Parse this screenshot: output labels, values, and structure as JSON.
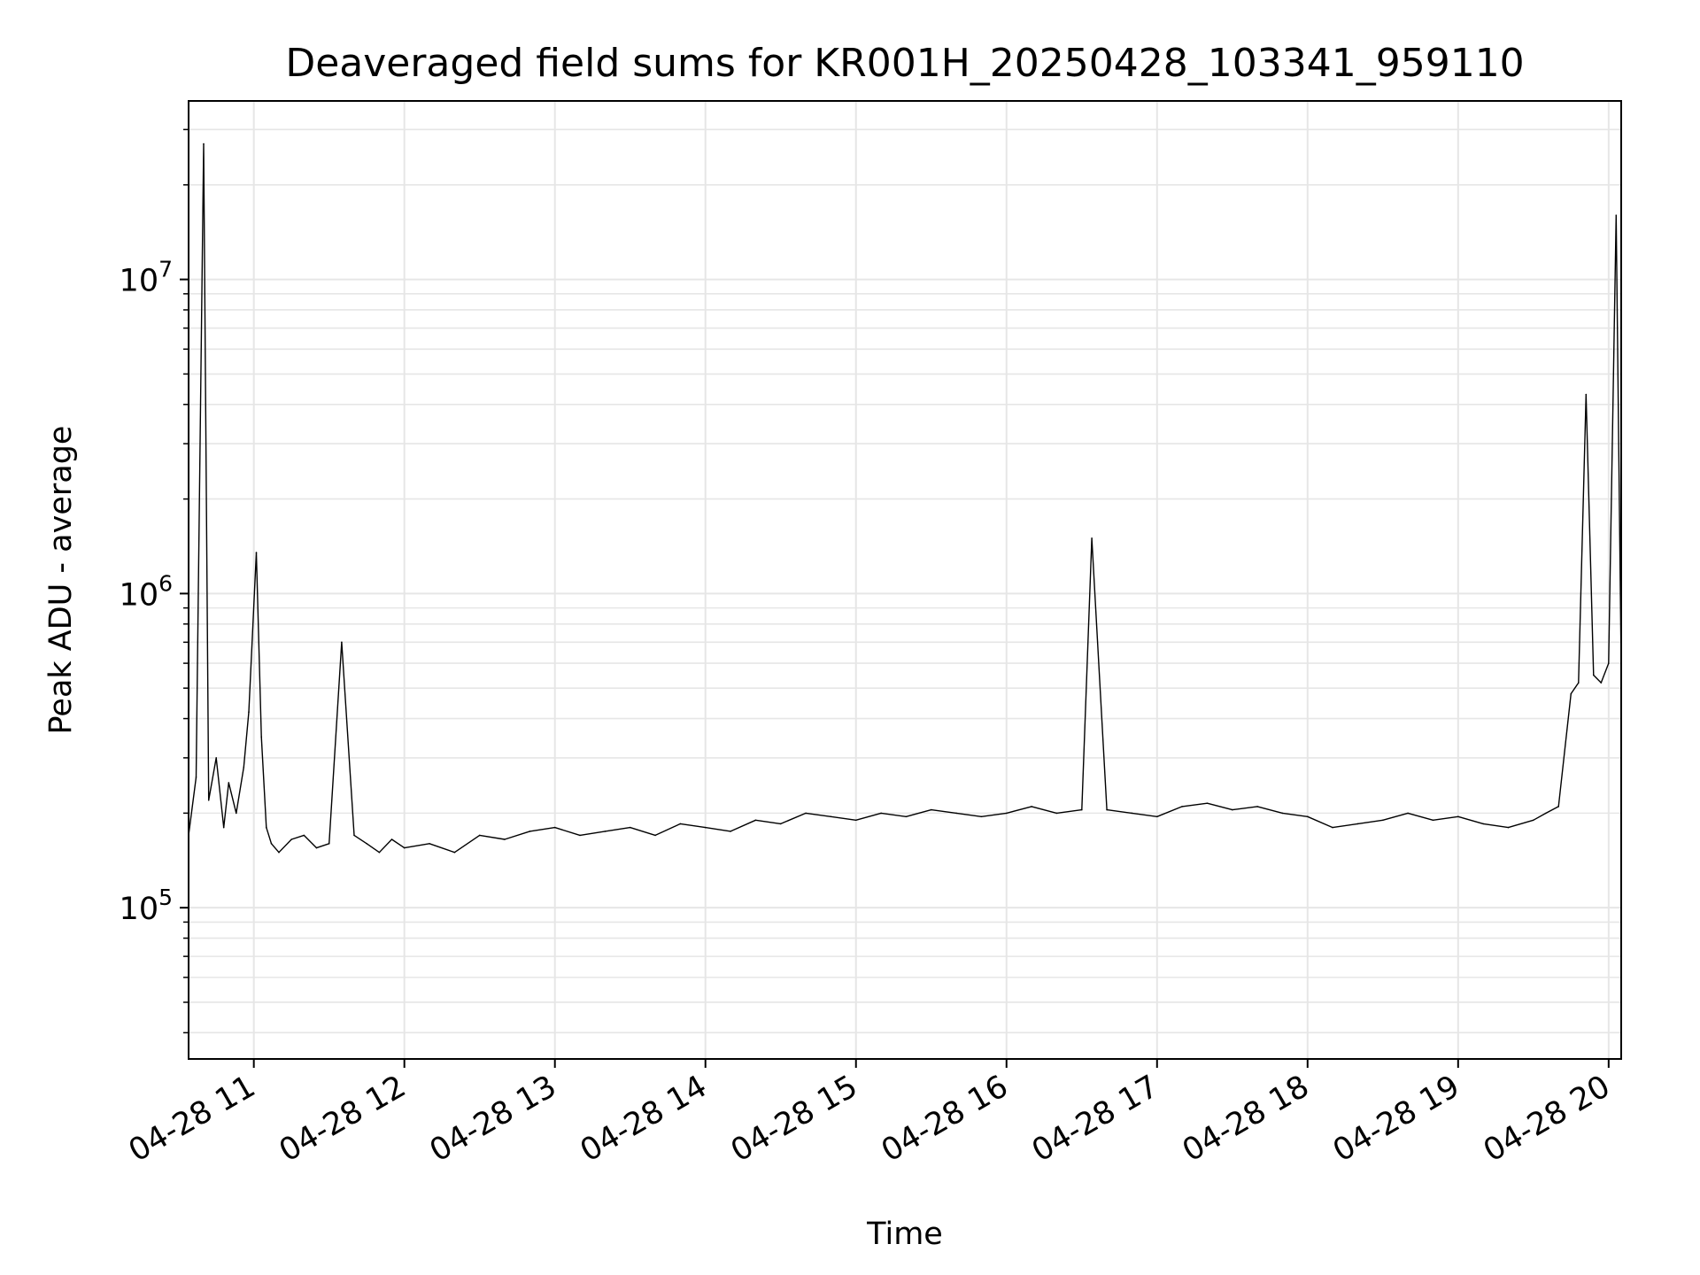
{
  "chart_data": {
    "type": "line",
    "title": "Deaveraged field sums for KR001H_20250428_103341_959110",
    "xlabel": "Time",
    "ylabel": "Peak ADU - average",
    "y_scale": "log",
    "ylim": [
      33000,
      37000000
    ],
    "xlim": [
      "2025-04-28 10:34",
      "2025-04-28 20:05"
    ],
    "grid": true,
    "line_color": "#000000",
    "x_ticks": [
      "04-28 11",
      "04-28 12",
      "04-28 13",
      "04-28 14",
      "04-28 15",
      "04-28 16",
      "04-28 17",
      "04-28 18",
      "04-28 19",
      "04-28 20"
    ],
    "y_ticks": [
      {
        "base": "10",
        "exp": "5",
        "value": 100000
      },
      {
        "base": "10",
        "exp": "6",
        "value": 1000000
      },
      {
        "base": "10",
        "exp": "7",
        "value": 10000000
      }
    ],
    "series": [
      {
        "time": [
          "2025-04-28 10:34",
          "2025-04-28 10:37",
          "2025-04-28 10:40",
          "2025-04-28 10:42",
          "2025-04-28 10:45",
          "2025-04-28 10:48",
          "2025-04-28 10:50",
          "2025-04-28 10:53",
          "2025-04-28 10:56",
          "2025-04-28 10:58",
          "2025-04-28 11:01",
          "2025-04-28 11:03",
          "2025-04-28 11:05",
          "2025-04-28 11:07",
          "2025-04-28 11:10",
          "2025-04-28 11:15",
          "2025-04-28 11:20",
          "2025-04-28 11:25",
          "2025-04-28 11:30",
          "2025-04-28 11:35",
          "2025-04-28 11:40",
          "2025-04-28 11:45",
          "2025-04-28 11:50",
          "2025-04-28 11:55",
          "2025-04-28 12:00",
          "2025-04-28 12:10",
          "2025-04-28 12:20",
          "2025-04-28 12:30",
          "2025-04-28 12:40",
          "2025-04-28 12:50",
          "2025-04-28 13:00",
          "2025-04-28 13:10",
          "2025-04-28 13:20",
          "2025-04-28 13:30",
          "2025-04-28 13:40",
          "2025-04-28 13:50",
          "2025-04-28 14:00",
          "2025-04-28 14:10",
          "2025-04-28 14:20",
          "2025-04-28 14:30",
          "2025-04-28 14:40",
          "2025-04-28 14:50",
          "2025-04-28 15:00",
          "2025-04-28 15:10",
          "2025-04-28 15:20",
          "2025-04-28 15:30",
          "2025-04-28 15:40",
          "2025-04-28 15:50",
          "2025-04-28 16:00",
          "2025-04-28 16:10",
          "2025-04-28 16:20",
          "2025-04-28 16:30",
          "2025-04-28 16:34",
          "2025-04-28 16:40",
          "2025-04-28 16:50",
          "2025-04-28 17:00",
          "2025-04-28 17:10",
          "2025-04-28 17:20",
          "2025-04-28 17:30",
          "2025-04-28 17:40",
          "2025-04-28 17:50",
          "2025-04-28 18:00",
          "2025-04-28 18:10",
          "2025-04-28 18:20",
          "2025-04-28 18:30",
          "2025-04-28 18:40",
          "2025-04-28 18:50",
          "2025-04-28 19:00",
          "2025-04-28 19:10",
          "2025-04-28 19:20",
          "2025-04-28 19:30",
          "2025-04-28 19:35",
          "2025-04-28 19:40",
          "2025-04-28 19:45",
          "2025-04-28 19:48",
          "2025-04-28 19:51",
          "2025-04-28 19:54",
          "2025-04-28 19:57",
          "2025-04-28 20:00",
          "2025-04-28 20:03",
          "2025-04-28 20:05"
        ],
        "y": [
          170000,
          260000,
          27000000,
          220000,
          300000,
          180000,
          250000,
          200000,
          280000,
          420000,
          1350000,
          350000,
          180000,
          160000,
          150000,
          165000,
          170000,
          155000,
          160000,
          700000,
          170000,
          160000,
          150000,
          165000,
          155000,
          160000,
          150000,
          170000,
          165000,
          175000,
          180000,
          170000,
          175000,
          180000,
          170000,
          185000,
          180000,
          175000,
          190000,
          185000,
          200000,
          195000,
          190000,
          200000,
          195000,
          205000,
          200000,
          195000,
          200000,
          210000,
          200000,
          205000,
          1500000,
          205000,
          200000,
          195000,
          210000,
          215000,
          205000,
          210000,
          200000,
          195000,
          180000,
          185000,
          190000,
          200000,
          190000,
          195000,
          185000,
          180000,
          190000,
          200000,
          210000,
          480000,
          520000,
          4300000,
          550000,
          520000,
          600000,
          16000000,
          580000
        ]
      }
    ]
  }
}
